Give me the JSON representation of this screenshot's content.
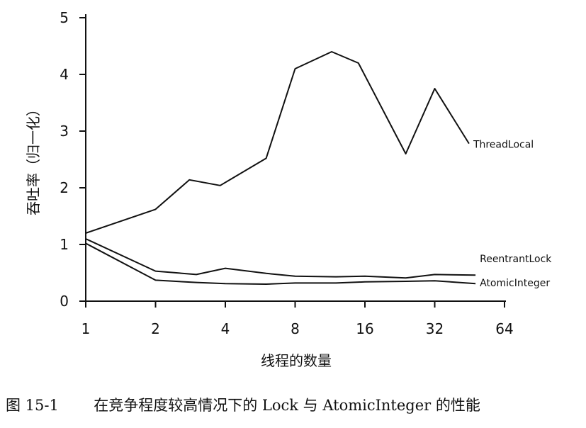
{
  "chart_data": {
    "type": "line",
    "x": [
      1,
      1.5,
      2,
      3,
      4,
      6,
      8,
      12,
      16,
      24,
      32,
      48
    ],
    "x_ticks": [
      "1",
      "2",
      "4",
      "8",
      "16",
      "32",
      "64"
    ],
    "x_tick_values": [
      1,
      2,
      4,
      8,
      16,
      32,
      64
    ],
    "y_ticks": [
      "0",
      "1",
      "2",
      "3",
      "4",
      "5"
    ],
    "ylim": [
      0,
      5
    ],
    "xlim": [
      1,
      64
    ],
    "x_scale": "log2",
    "xlabel": "线程的数量",
    "ylabel": "吞吐率（归一化）",
    "grid": false,
    "series": [
      {
        "name": "ThreadLocal",
        "points": [
          [
            1,
            1.2
          ],
          [
            2,
            1.62
          ],
          [
            2.8,
            2.14
          ],
          [
            3.8,
            2.04
          ],
          [
            6,
            2.52
          ],
          [
            8,
            4.1
          ],
          [
            11.5,
            4.4
          ],
          [
            15,
            4.2
          ],
          [
            24,
            2.6
          ],
          [
            32,
            3.75
          ],
          [
            45,
            2.78
          ]
        ]
      },
      {
        "name": "ReentrantLock",
        "points": [
          [
            1,
            1.1
          ],
          [
            2,
            0.53
          ],
          [
            3,
            0.47
          ],
          [
            4,
            0.58
          ],
          [
            6,
            0.49
          ],
          [
            8,
            0.44
          ],
          [
            12,
            0.43
          ],
          [
            16,
            0.44
          ],
          [
            24,
            0.41
          ],
          [
            32,
            0.47
          ],
          [
            48,
            0.46
          ]
        ]
      },
      {
        "name": "AtomicInteger",
        "points": [
          [
            1,
            1.02
          ],
          [
            2,
            0.37
          ],
          [
            3,
            0.33
          ],
          [
            4,
            0.31
          ],
          [
            6,
            0.3
          ],
          [
            8,
            0.32
          ],
          [
            12,
            0.32
          ],
          [
            16,
            0.34
          ],
          [
            24,
            0.35
          ],
          [
            32,
            0.36
          ],
          [
            48,
            0.31
          ]
        ]
      }
    ]
  },
  "caption": {
    "figure_number": "图 15-1",
    "text": "在竞争程度较高情况下的 Lock 与 AtomicInteger 的性能"
  }
}
